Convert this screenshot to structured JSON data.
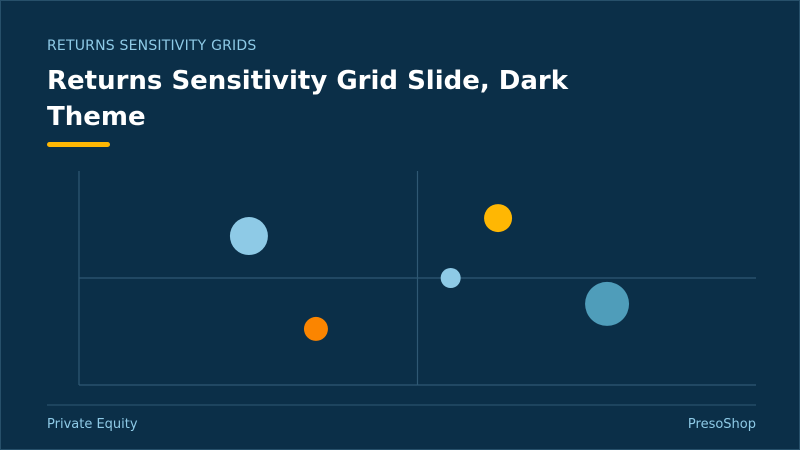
{
  "header": {
    "kicker": "RETURNS SENSITIVITY GRIDS",
    "title": "Returns Sensitivity Grid Slide, Dark Theme"
  },
  "chart_data": {
    "type": "bubble",
    "x": [
      25.1,
      35.0,
      61.9,
      54.9,
      78.0
    ],
    "y": [
      69.6,
      26.2,
      78.0,
      50.0,
      37.9
    ],
    "sizes": [
      19,
      12,
      14,
      10,
      22
    ],
    "colors": [
      "#8ecae6",
      "#fb8500",
      "#ffb703",
      "#8ecae6",
      "#4f9dba"
    ],
    "xlim": [
      0,
      100
    ],
    "ylim": [
      0,
      100
    ]
  },
  "footer": {
    "left": "Private Equity",
    "right": "PresoShop"
  }
}
